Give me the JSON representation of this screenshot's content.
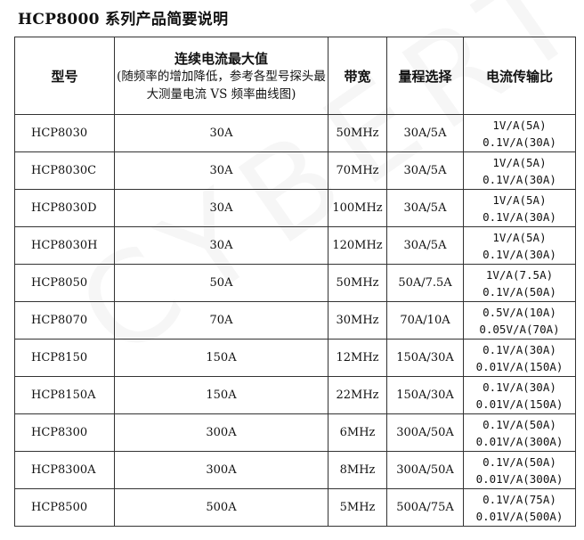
{
  "title": "HCP8000 系列产品简要说明",
  "watermark": "CYBERTEK",
  "headers": {
    "model": "型号",
    "max_current": "连续电流最大值",
    "max_current_note": "(随频率的增加降低，参考各型号探头最大测量电流 VS 频率曲线图)",
    "bandwidth": "带宽",
    "range": "量程选择",
    "ratio": "电流传输比"
  },
  "rows": [
    {
      "model": "HCP8030",
      "current": "30A",
      "bw": "50MHz",
      "range": "30A/5A",
      "ratio1": "1V/A(5A)",
      "ratio2": "0.1V/A(30A)"
    },
    {
      "model": "HCP8030C",
      "current": "30A",
      "bw": "70MHz",
      "range": "30A/5A",
      "ratio1": "1V/A(5A)",
      "ratio2": "0.1V/A(30A)"
    },
    {
      "model": "HCP8030D",
      "current": "30A",
      "bw": "100MHz",
      "range": "30A/5A",
      "ratio1": "1V/A(5A)",
      "ratio2": "0.1V/A(30A)"
    },
    {
      "model": "HCP8030H",
      "current": "30A",
      "bw": "120MHz",
      "range": "30A/5A",
      "ratio1": "1V/A(5A)",
      "ratio2": "0.1V/A(30A)"
    },
    {
      "model": "HCP8050",
      "current": "50A",
      "bw": "50MHz",
      "range": "50A/7.5A",
      "ratio1": "1V/A(7.5A)",
      "ratio2": "0.1V/A(50A)"
    },
    {
      "model": "HCP8070",
      "current": "70A",
      "bw": "30MHz",
      "range": "70A/10A",
      "ratio1": "0.5V/A(10A)",
      "ratio2": "0.05V/A(70A)"
    },
    {
      "model": "HCP8150",
      "current": "150A",
      "bw": "12MHz",
      "range": "150A/30A",
      "ratio1": "0.1V/A(30A)",
      "ratio2": "0.01V/A(150A)"
    },
    {
      "model": "HCP8150A",
      "current": "150A",
      "bw": "22MHz",
      "range": "150A/30A",
      "ratio1": "0.1V/A(30A)",
      "ratio2": "0.01V/A(150A)"
    },
    {
      "model": "HCP8300",
      "current": "300A",
      "bw": "6MHz",
      "range": "300A/50A",
      "ratio1": "0.1V/A(50A)",
      "ratio2": "0.01V/A(300A)"
    },
    {
      "model": "HCP8300A",
      "current": "300A",
      "bw": "8MHz",
      "range": "300A/50A",
      "ratio1": "0.1V/A(50A)",
      "ratio2": "0.01V/A(300A)"
    },
    {
      "model": "HCP8500",
      "current": "500A",
      "bw": "5MHz",
      "range": "500A/75A",
      "ratio1": "0.1V/A(75A)",
      "ratio2": "0.01V/A(500A)"
    }
  ]
}
